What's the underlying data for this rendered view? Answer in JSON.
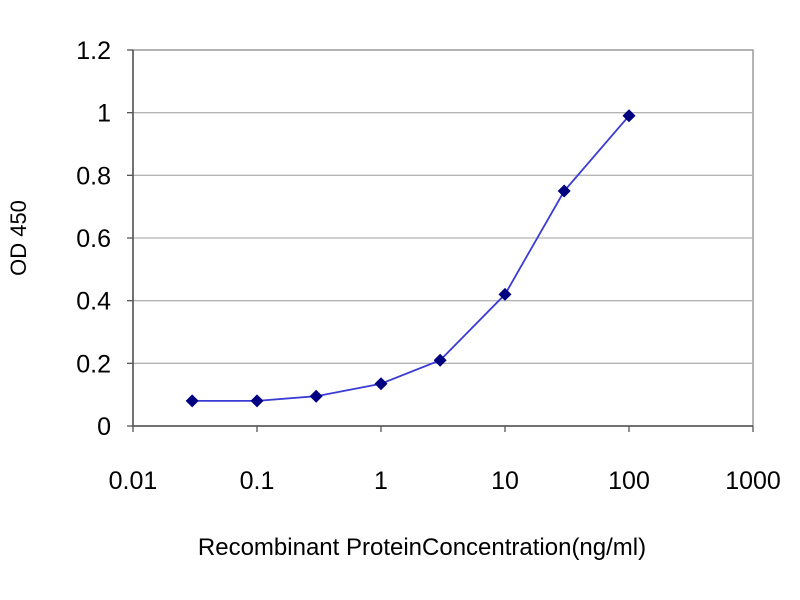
{
  "chart_data": {
    "type": "line",
    "title": "",
    "xlabel": "Recombinant ProteinConcentration(ng/ml)",
    "ylabel": "OD 450",
    "x_scale": "log",
    "xlim": [
      0.01,
      1000
    ],
    "ylim": [
      0,
      1.2
    ],
    "x_ticks": [
      "0.01",
      "0.1",
      "1",
      "10",
      "100",
      "1000"
    ],
    "y_ticks": [
      "0",
      "0.2",
      "0.4",
      "0.6",
      "0.8",
      "1",
      "1.2"
    ],
    "grid": "horizontal",
    "legend": "none",
    "line_color": "#3b3bd6",
    "marker_color": "#000080",
    "series": [
      {
        "x": [
          0.03,
          0.1,
          0.3,
          1,
          3,
          10,
          30,
          100
        ],
        "y": [
          0.08,
          0.08,
          0.095,
          0.135,
          0.21,
          0.42,
          0.75,
          0.99
        ]
      }
    ]
  }
}
